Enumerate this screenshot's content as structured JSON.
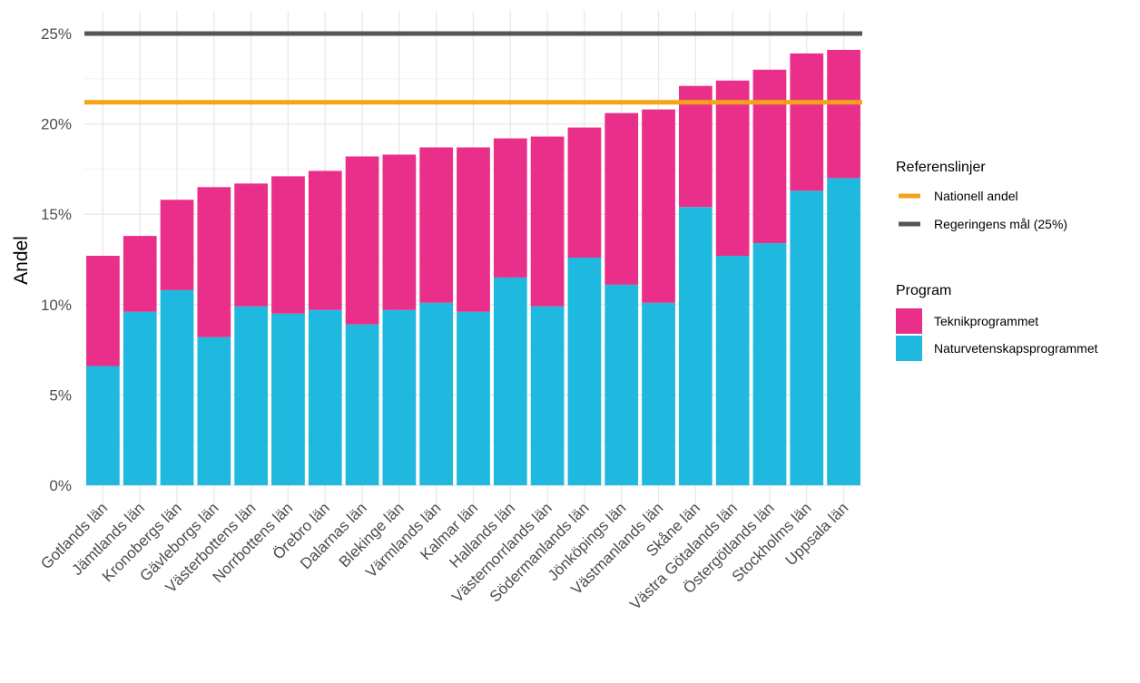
{
  "chart_data": {
    "type": "bar",
    "stacked": true,
    "ylabel": "Andel",
    "xlabel": "",
    "title": "",
    "ylim": [
      0,
      0.25
    ],
    "yticks": [
      0,
      0.05,
      0.1,
      0.15,
      0.2,
      0.25
    ],
    "ytick_labels": [
      "0%",
      "5%",
      "10%",
      "15%",
      "20%",
      "25%"
    ],
    "categories": [
      "Gotlands län",
      "Jämtlands län",
      "Kronobergs län",
      "Gävleborgs län",
      "Västerbottens län",
      "Norrbottens län",
      "Örebro län",
      "Dalarnas län",
      "Blekinge län",
      "Värmlands län",
      "Kalmar län",
      "Hallands län",
      "Västernorrlands län",
      "Södermanlands län",
      "Jönköpings län",
      "Västmanlands län",
      "Skåne län",
      "Västra Götalands län",
      "Östergötlands län",
      "Stockholms län",
      "Uppsala län"
    ],
    "series": [
      {
        "name": "Naturvetenskapsprogrammet",
        "color": "#1FB8DE",
        "values": [
          0.066,
          0.096,
          0.108,
          0.082,
          0.099,
          0.095,
          0.097,
          0.089,
          0.097,
          0.101,
          0.096,
          0.115,
          0.099,
          0.126,
          0.111,
          0.101,
          0.154,
          0.127,
          0.134,
          0.163,
          0.17
        ]
      },
      {
        "name": "Teknikprogrammet",
        "color": "#EA2F8A",
        "values": [
          0.061,
          0.042,
          0.05,
          0.083,
          0.068,
          0.076,
          0.077,
          0.093,
          0.086,
          0.086,
          0.091,
          0.077,
          0.094,
          0.072,
          0.095,
          0.107,
          0.067,
          0.097,
          0.096,
          0.076,
          0.071
        ]
      }
    ],
    "reference_lines": [
      {
        "name": "Nationell andel",
        "value": 0.212,
        "color": "#F5A319"
      },
      {
        "name": "Regeringens mål (25%)",
        "value": 0.25,
        "color": "#555555"
      }
    ],
    "grid": true,
    "legend_position": "right",
    "legends": [
      {
        "title": "Referenslinjer",
        "items": [
          "Nationell andel",
          "Regeringens mål (25%)"
        ]
      },
      {
        "title": "Program",
        "items": [
          "Teknikprogrammet",
          "Naturvetenskapsprogrammet"
        ]
      }
    ]
  }
}
